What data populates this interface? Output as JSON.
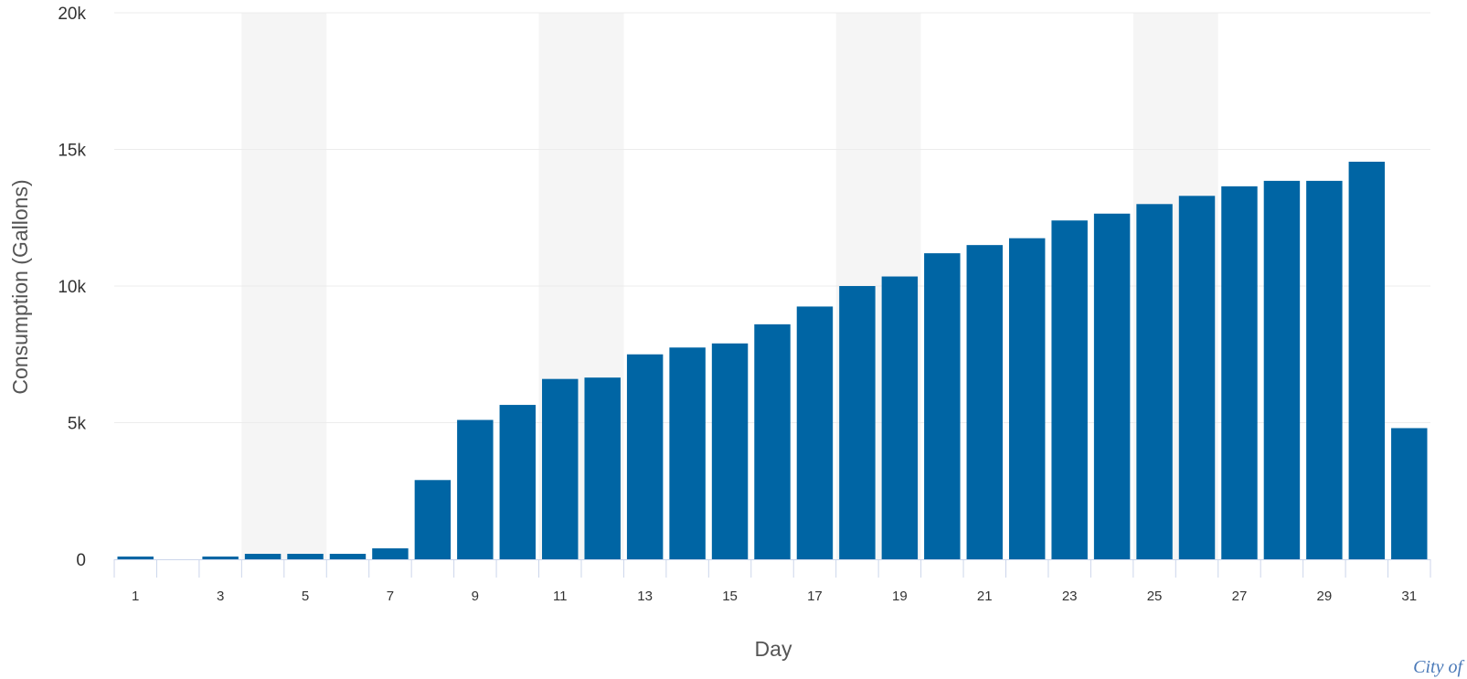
{
  "chart_data": {
    "type": "bar",
    "categories": [
      "1",
      "2",
      "3",
      "4",
      "5",
      "6",
      "7",
      "8",
      "9",
      "10",
      "11",
      "12",
      "13",
      "14",
      "15",
      "16",
      "17",
      "18",
      "19",
      "20",
      "21",
      "22",
      "23",
      "24",
      "25",
      "26",
      "27",
      "28",
      "29",
      "30",
      "31"
    ],
    "tick_labels_x": [
      "1",
      "3",
      "5",
      "7",
      "9",
      "11",
      "13",
      "15",
      "17",
      "19",
      "21",
      "23",
      "25",
      "27",
      "29",
      "31"
    ],
    "values": [
      100,
      0,
      100,
      200,
      200,
      200,
      400,
      2900,
      5100,
      5650,
      6600,
      6650,
      7500,
      7750,
      7900,
      8600,
      9250,
      10000,
      10350,
      11200,
      11500,
      11750,
      12400,
      12650,
      13000,
      13300,
      13650,
      13850,
      13850,
      14550,
      4800
    ],
    "ylim": [
      0,
      20000
    ],
    "y_ticks": [
      0,
      5000,
      10000,
      15000,
      20000
    ],
    "y_tick_labels": [
      "0",
      "5k",
      "10k",
      "15k",
      "20k"
    ],
    "xlabel": "Day",
    "ylabel": "Consumption (Gallons)",
    "bar_color": "#0065a4",
    "grid": true,
    "weekend_bands": [
      [
        4,
        5
      ],
      [
        11,
        12
      ],
      [
        18,
        19
      ],
      [
        25,
        26
      ]
    ],
    "band_color": "#f5f5f5",
    "watermark": "City of"
  }
}
